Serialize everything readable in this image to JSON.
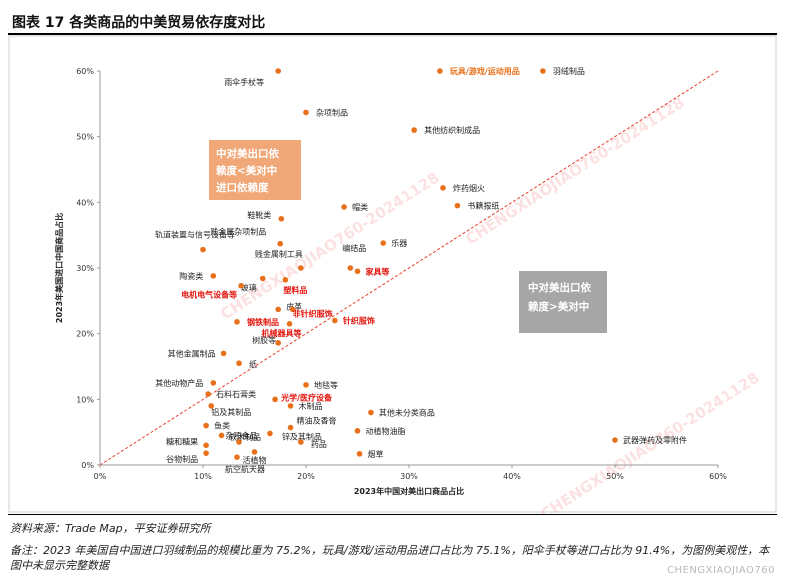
{
  "figure": {
    "title": "图表 17   各类商品的中美贸易依存度对比",
    "source": "资料来源：Trade Map，平安证券研究所",
    "note": "备注：2023 年美国自中国进口羽绒制品的规模比重为 75.2%，玩具/游戏/运动用品进口占比为 75.1%，阳伞手杖等进口占比为 91.4%，为图例美观性，本图中未显示完整数据",
    "footer_watermark": "CHENGXIAOJIAO760",
    "chart_watermark": "CHENGXIAOJIAO760-20241128"
  },
  "chart_data": {
    "type": "scatter",
    "xlabel": "2023年中国对美出口商品占比",
    "ylabel": "2023年美国进口中国商品占比",
    "xlim": [
      0,
      0.6
    ],
    "ylim": [
      0,
      0.6
    ],
    "xticks": [
      "0%",
      "10%",
      "20%",
      "30%",
      "40%",
      "50%",
      "60%"
    ],
    "yticks": [
      "0%",
      "10%",
      "20%",
      "30%",
      "40%",
      "50%",
      "60%"
    ],
    "reference_line": "y = x",
    "marker_color": "#e8701a",
    "line_color": "#e8412c",
    "regions": [
      {
        "label": "中对美出口依赖度<美对中进口依赖度",
        "lines": [
          "中对美出口依",
          "赖度<美对中",
          "进口依赖度"
        ],
        "color": "#f0a878"
      },
      {
        "label": "中对美出口依赖度>美对中",
        "lines": [
          "中对美出口依",
          "赖度>美对中"
        ],
        "color": "#a6a6a6"
      }
    ],
    "points": [
      {
        "name": "雨伞手杖等",
        "x": 0.173,
        "y": 0.6,
        "style": "normal"
      },
      {
        "name": "玩具/游戏/运动用品",
        "x": 0.33,
        "y": 0.6,
        "style": "orange"
      },
      {
        "name": "羽绒制品",
        "x": 0.43,
        "y": 0.6,
        "style": "normal"
      },
      {
        "name": "杂项制品",
        "x": 0.2,
        "y": 0.537,
        "style": "normal"
      },
      {
        "name": "其他纺织制成品",
        "x": 0.305,
        "y": 0.51,
        "style": "normal"
      },
      {
        "name": "炸药烟火",
        "x": 0.333,
        "y": 0.422,
        "style": "normal"
      },
      {
        "name": "书籍报纸",
        "x": 0.347,
        "y": 0.395,
        "style": "normal"
      },
      {
        "name": "帽类",
        "x": 0.237,
        "y": 0.393,
        "style": "normal"
      },
      {
        "name": "轨道装置与信号设备等",
        "x": 0.1,
        "y": 0.328,
        "style": "normal"
      },
      {
        "name": "鞋靴类",
        "x": 0.176,
        "y": 0.375,
        "style": "normal"
      },
      {
        "name": "贱金属杂项制品",
        "x": 0.175,
        "y": 0.337,
        "style": "normal"
      },
      {
        "name": "乐器",
        "x": 0.275,
        "y": 0.338,
        "style": "normal"
      },
      {
        "name": "编结品",
        "x": 0.243,
        "y": 0.3,
        "style": "normal"
      },
      {
        "name": "贱金属制工具",
        "x": 0.195,
        "y": 0.3,
        "style": "normal"
      },
      {
        "name": "家具等",
        "x": 0.25,
        "y": 0.295,
        "style": "red"
      },
      {
        "name": "陶瓷类",
        "x": 0.11,
        "y": 0.288,
        "style": "normal"
      },
      {
        "name": "玻璃",
        "x": 0.158,
        "y": 0.284,
        "style": "normal"
      },
      {
        "name": "塑料品",
        "x": 0.18,
        "y": 0.282,
        "style": "red"
      },
      {
        "name": "电机电气设备等",
        "x": 0.137,
        "y": 0.273,
        "style": "red"
      },
      {
        "name": "皮革",
        "x": 0.173,
        "y": 0.237,
        "style": "normal"
      },
      {
        "name": "非针织服饰",
        "x": 0.187,
        "y": 0.237,
        "style": "red"
      },
      {
        "name": "钢铁制品",
        "x": 0.133,
        "y": 0.218,
        "style": "red"
      },
      {
        "name": "针织服饰",
        "x": 0.228,
        "y": 0.22,
        "style": "red"
      },
      {
        "name": "机械器具等",
        "x": 0.184,
        "y": 0.215,
        "style": "red"
      },
      {
        "name": "树胶等",
        "x": 0.173,
        "y": 0.186,
        "style": "normal"
      },
      {
        "name": "其他金属制品",
        "x": 0.12,
        "y": 0.17,
        "style": "normal"
      },
      {
        "name": "纸",
        "x": 0.135,
        "y": 0.155,
        "style": "normal"
      },
      {
        "name": "其他动物产品",
        "x": 0.11,
        "y": 0.125,
        "style": "normal"
      },
      {
        "name": "地毯等",
        "x": 0.2,
        "y": 0.122,
        "style": "normal"
      },
      {
        "name": "石料石膏类",
        "x": 0.105,
        "y": 0.108,
        "style": "normal"
      },
      {
        "name": "光学/医疗设备",
        "x": 0.17,
        "y": 0.1,
        "style": "red"
      },
      {
        "name": "木制品",
        "x": 0.185,
        "y": 0.09,
        "style": "normal"
      },
      {
        "name": "铝及其制品",
        "x": 0.108,
        "y": 0.09,
        "style": "normal"
      },
      {
        "name": "其他未分类商品",
        "x": 0.263,
        "y": 0.08,
        "style": "normal"
      },
      {
        "name": "鱼类",
        "x": 0.103,
        "y": 0.06,
        "style": "normal"
      },
      {
        "name": "杂项食品",
        "x": 0.118,
        "y": 0.045,
        "style": "normal"
      },
      {
        "name": "锌及其制品",
        "x": 0.165,
        "y": 0.048,
        "style": "normal"
      },
      {
        "name": "精油及香膏",
        "x": 0.185,
        "y": 0.057,
        "style": "normal"
      },
      {
        "name": "动植物油脂",
        "x": 0.25,
        "y": 0.052,
        "style": "normal"
      },
      {
        "name": "软木制品",
        "x": 0.135,
        "y": 0.035,
        "style": "normal"
      },
      {
        "name": "药品",
        "x": 0.195,
        "y": 0.035,
        "style": "normal"
      },
      {
        "name": "糖和糖果",
        "x": 0.103,
        "y": 0.03,
        "style": "normal"
      },
      {
        "name": "谷物制品",
        "x": 0.103,
        "y": 0.018,
        "style": "normal"
      },
      {
        "name": "活植物",
        "x": 0.15,
        "y": 0.02,
        "style": "normal"
      },
      {
        "name": "航空航天器",
        "x": 0.133,
        "y": 0.012,
        "style": "normal"
      },
      {
        "name": "烟草",
        "x": 0.252,
        "y": 0.017,
        "style": "normal"
      },
      {
        "name": "武器弹药及零附件",
        "x": 0.5,
        "y": 0.038,
        "style": "normal"
      }
    ]
  }
}
